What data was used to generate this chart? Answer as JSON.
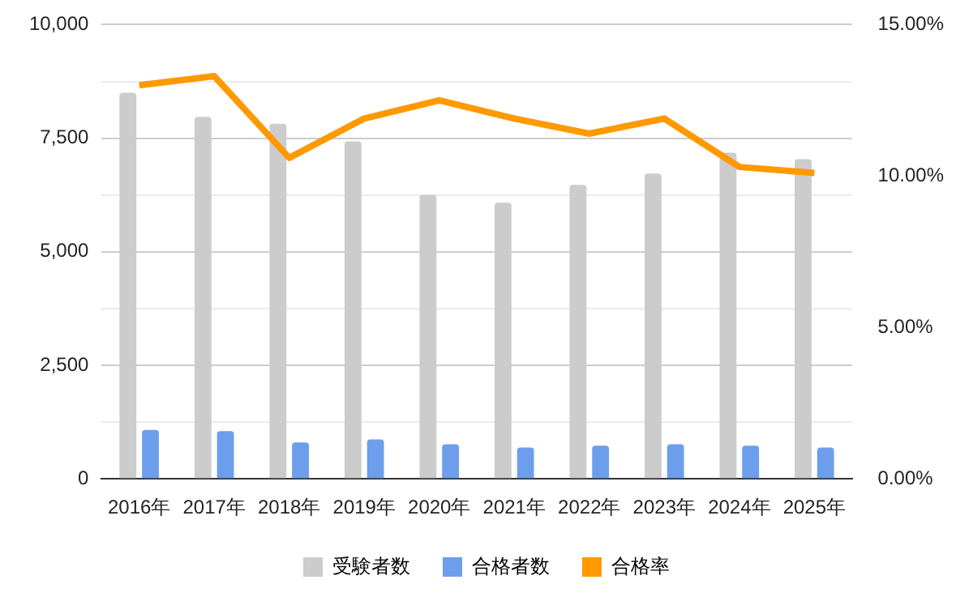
{
  "chart_data": {
    "type": "bar",
    "categories": [
      "2016年",
      "2017年",
      "2018年",
      "2019年",
      "2020年",
      "2021年",
      "2022年",
      "2023年",
      "2024年",
      "2025年"
    ],
    "series": [
      {
        "name": "受験者数",
        "color": "#cccccc",
        "values": [
          8500,
          7970,
          7820,
          7430,
          6250,
          6080,
          6470,
          6720,
          7180,
          7040
        ]
      },
      {
        "name": "合格者数",
        "color": "#6d9eeb",
        "values": [
          1080,
          1050,
          800,
          870,
          760,
          690,
          730,
          760,
          730,
          690
        ]
      },
      {
        "name": "合格率",
        "type": "line",
        "axis": "y2",
        "color": "#ff9900",
        "values": [
          13.0,
          13.3,
          10.6,
          11.9,
          12.5,
          11.9,
          11.4,
          11.9,
          10.3,
          10.1
        ]
      }
    ],
    "ylim": [
      0,
      10000
    ],
    "yticks": [
      0,
      {
        "value": 1250,
        "label": null
      },
      {
        "value": 2500,
        "label": "2,500"
      },
      {
        "value": 3750,
        "label": null
      },
      {
        "value": 5000,
        "label": "5,000"
      },
      {
        "value": 6250,
        "label": null
      },
      {
        "value": 7500,
        "label": "7,500"
      },
      {
        "value": 8750,
        "label": null
      },
      {
        "value": 10000,
        "label": "10,000"
      }
    ],
    "y2lim": [
      0,
      15
    ],
    "y2ticks": [
      {
        "value": 0,
        "label": "0.00%"
      },
      {
        "value": 5,
        "label": "5.00%"
      },
      {
        "value": 10,
        "label": "10.00%"
      },
      {
        "value": 15,
        "label": "15.00%"
      }
    ],
    "grid": "y",
    "legend": "bottom",
    "marker": "none",
    "line_style": "solid"
  }
}
